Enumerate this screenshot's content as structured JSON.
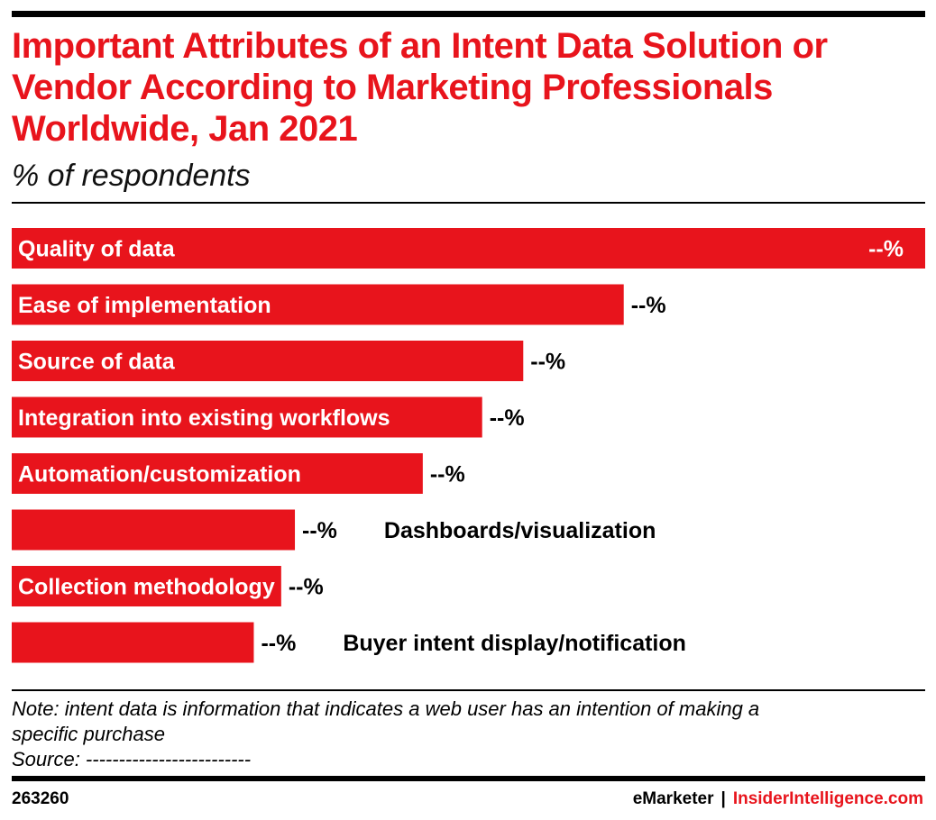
{
  "title": "Important Attributes of an Intent Data Solution or Vendor According to Marketing Professionals Worldwide, Jan 2021",
  "subtitle": "% of respondents",
  "colors": {
    "accent": "#e8141c",
    "text": "#000000"
  },
  "chart_data": {
    "type": "bar",
    "orientation": "horizontal",
    "categories": [
      "Quality of data",
      "Ease of implementation",
      "Source of data",
      "Integration into existing workflows",
      "Automation/customization",
      "Dashboards/visualization",
      "Collection methodology",
      "Buyer intent display/notification"
    ],
    "values": [
      100,
      67,
      56,
      51.5,
      45,
      31,
      29.5,
      26.5
    ],
    "value_labels": [
      "--%",
      "--%",
      "--%",
      "--%",
      "--%",
      "--%",
      "--%",
      "--%"
    ],
    "xlim": [
      0,
      100
    ],
    "grid": false,
    "legend": "none"
  },
  "note": {
    "line1": "Note: intent data is information that indicates a web user has an intention of making a",
    "line2": "specific purchase",
    "source": "Source: -------------------------"
  },
  "footer": {
    "chart_id": "263260",
    "brand1": "eMarketer",
    "separator": "|",
    "brand2": "InsiderIntelligence.com"
  }
}
